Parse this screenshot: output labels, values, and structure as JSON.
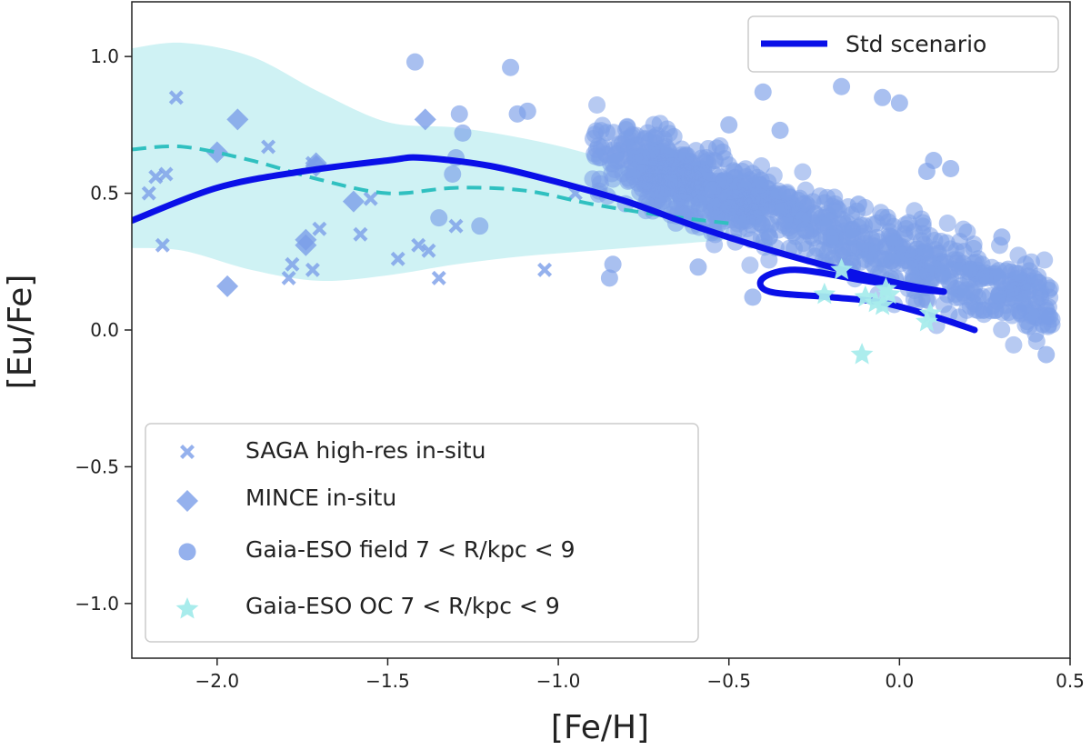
{
  "chart_data": {
    "type": "scatter",
    "xlabel": "[Fe/H]",
    "ylabel": "[Eu/Fe]",
    "xlim": [
      -2.25,
      0.5
    ],
    "ylim": [
      -1.2,
      1.2
    ],
    "xticks": [
      -2.0,
      -1.5,
      -1.0,
      -0.5,
      0.0,
      0.5
    ],
    "xtick_labels": [
      "−2.0",
      "−1.5",
      "−1.0",
      "−0.5",
      "0.0",
      "0.5"
    ],
    "yticks": [
      -1.0,
      -0.5,
      0.0,
      0.5,
      1.0
    ],
    "ytick_labels": [
      "−1.0",
      "−0.5",
      "0.0",
      "0.5",
      "1.0"
    ],
    "grid": false,
    "legend_top": {
      "placement": "top-right",
      "entries": [
        "Std scenario"
      ]
    },
    "legend_bottom": {
      "placement": "bottom-left",
      "entries": [
        "SAGA high-res in-situ",
        "MINCE in-situ",
        "Gaia-ESO field 7 < R/kpc < 9",
        "Gaia-ESO OC 7 < R/kpc < 9"
      ]
    },
    "colors": {
      "points": "#7b9ee8",
      "stars": "#a8ecec",
      "model_line": "#0a10e8",
      "band_fill": "#bfeef0",
      "dashed_line": "#30c0c0",
      "frame": "#222222"
    },
    "model_line": {
      "name": "Std scenario",
      "x": [
        -2.25,
        -2.0,
        -1.75,
        -1.5,
        -1.4,
        -1.2,
        -1.0,
        -0.8,
        -0.6,
        -0.4,
        -0.2,
        0.0,
        0.13
      ],
      "y": [
        0.4,
        0.52,
        0.58,
        0.62,
        0.63,
        0.6,
        0.54,
        0.47,
        0.38,
        0.3,
        0.23,
        0.17,
        0.14
      ],
      "loop": {
        "x": [
          0.13,
          0.05,
          -0.1,
          -0.3,
          -0.4,
          -0.38,
          -0.2,
          -0.05,
          0.1,
          0.22
        ],
        "y": [
          0.14,
          0.15,
          0.18,
          0.22,
          0.19,
          0.14,
          0.12,
          0.1,
          0.05,
          0.0
        ]
      }
    },
    "dashed_mean": {
      "x": [
        -2.25,
        -2.1,
        -1.9,
        -1.7,
        -1.5,
        -1.3,
        -1.1,
        -0.9,
        -0.7,
        -0.5
      ],
      "y": [
        0.66,
        0.67,
        0.62,
        0.55,
        0.5,
        0.52,
        0.51,
        0.46,
        0.42,
        0.39
      ]
    },
    "dispersion_band": {
      "x": [
        -2.25,
        -2.1,
        -1.9,
        -1.7,
        -1.5,
        -1.3,
        -1.1,
        -0.9,
        -0.7,
        -0.5
      ],
      "upper": [
        1.03,
        1.05,
        1.0,
        0.87,
        0.76,
        0.74,
        0.7,
        0.64,
        0.55,
        0.45
      ],
      "lower": [
        0.3,
        0.29,
        0.22,
        0.18,
        0.2,
        0.24,
        0.27,
        0.29,
        0.31,
        0.33
      ]
    },
    "saga_points": {
      "x": [
        -2.12,
        -2.18,
        -2.16,
        -2.2,
        -2.15,
        -1.7,
        -1.85,
        -1.72,
        -1.79,
        -1.58,
        -1.55,
        -1.72,
        -1.78,
        -1.41,
        -1.47,
        -1.38,
        -1.35,
        -1.04,
        -0.95,
        -1.3
      ],
      "y": [
        0.85,
        0.56,
        0.31,
        0.5,
        0.57,
        0.37,
        0.67,
        0.22,
        0.19,
        0.35,
        0.48,
        0.61,
        0.24,
        0.31,
        0.26,
        0.29,
        0.19,
        0.22,
        0.5,
        0.38
      ]
    },
    "mince_points": {
      "x": [
        -1.94,
        -2.0,
        -1.74,
        -1.71,
        -1.6,
        -1.39,
        -1.97,
        -1.71,
        -1.74
      ],
      "y": [
        0.77,
        0.65,
        0.33,
        0.61,
        0.47,
        0.77,
        0.16,
        0.6,
        0.31
      ]
    },
    "gaia_field_points": {
      "note": "dense cloud of ~1000 stars spanning [Fe/H] -1.5 to 0.45; representative sample",
      "x": [
        -1.42,
        -1.14,
        -1.09,
        -1.12,
        -1.29,
        -1.28,
        -1.3,
        -1.31,
        -1.35,
        -1.23,
        -0.59,
        -0.84,
        -0.85,
        -0.5,
        -0.4,
        -0.35,
        -0.17,
        -0.05,
        0.0,
        -0.12,
        0.08,
        0.1,
        0.15,
        0.3,
        0.35,
        0.42,
        0.44,
        0.43,
        -0.43
      ],
      "y": [
        0.98,
        0.96,
        0.8,
        0.79,
        0.79,
        0.72,
        0.63,
        0.57,
        0.41,
        0.38,
        0.23,
        0.24,
        0.19,
        0.75,
        0.87,
        0.73,
        0.89,
        0.85,
        0.83,
        0.46,
        0.58,
        0.62,
        0.59,
        0.34,
        0.07,
        0.02,
        0.05,
        -0.09,
        0.12
      ]
    },
    "gaia_oc_points": {
      "x": [
        -0.17,
        -0.22,
        -0.1,
        -0.07,
        -0.04,
        -0.03,
        -0.05,
        0.08,
        0.09,
        -0.11
      ],
      "y": [
        0.22,
        0.13,
        0.12,
        0.1,
        0.15,
        0.13,
        0.09,
        0.03,
        0.06,
        -0.09
      ]
    }
  }
}
